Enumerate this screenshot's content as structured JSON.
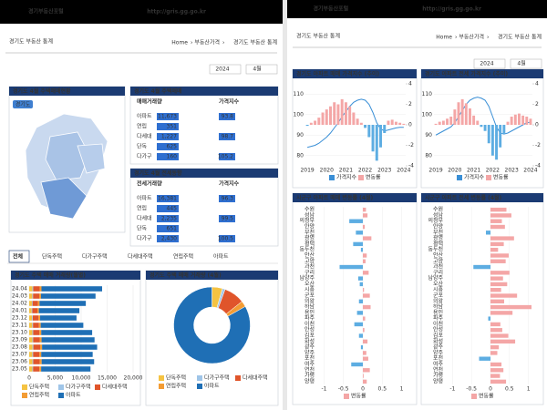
{
  "left": {
    "header": {
      "brand": "경기부동산포털",
      "url": "http://gris.gg.go.kr"
    },
    "title": "경기도 부동산 통계",
    "breadcrumb": [
      "Home",
      "부동산가격",
      "경기도 부동산 통계"
    ],
    "year": "2024",
    "month": "4월",
    "map": {
      "title": "경기도 4월 주택매매현황",
      "tag": "경기도"
    },
    "trade": {
      "title": "경기도 4월 주택매매",
      "col1": "매매거래량",
      "col2": "가격지수",
      "rows": [
        {
          "type": "아파트",
          "count": "11,673",
          "index": "93.8"
        },
        {
          "type": "연립",
          "count": "351"
        },
        {
          "type": "다세대",
          "count": "1,227",
          "index": "98.7"
        },
        {
          "type": "단독",
          "count": "625"
        },
        {
          "type": "다가구",
          "count": "160",
          "index": "105.2"
        }
      ]
    },
    "lease": {
      "title": "경기도 4월 전세동향",
      "col1": "전세거래량",
      "col2": "가격지수",
      "rows": [
        {
          "type": "아파트",
          "count": "16,381",
          "index": "96.3"
        },
        {
          "type": "연립",
          "count": "445"
        },
        {
          "type": "다세대",
          "count": "2,235",
          "index": "99.5"
        },
        {
          "type": "단독",
          "count": "651"
        },
        {
          "type": "다가구",
          "count": "2,430",
          "index": "100.5"
        }
      ]
    },
    "tabs": [
      "전체",
      "단독주택",
      "다가구주택",
      "다세대주택",
      "연립주택",
      "아파트"
    ],
    "monthly_chart": {
      "type": "bar",
      "title": "경기도 주택 매매 거래량(월별)",
      "categories": [
        "24.04",
        "24.03",
        "24.02",
        "24.01",
        "23.12",
        "23.11",
        "23.10",
        "23.09",
        "23.08",
        "23.07",
        "23.06",
        "23.05"
      ],
      "series": [
        {
          "name": "단독주택",
          "color": "#f5c342",
          "values": [
            625,
            600,
            520,
            480,
            560,
            590,
            610,
            620,
            640,
            600,
            630,
            610
          ]
        },
        {
          "name": "다가구주택",
          "color": "#9fc5e8",
          "values": [
            160,
            150,
            130,
            120,
            140,
            150,
            160,
            150,
            170,
            160,
            150,
            140
          ]
        },
        {
          "name": "다세대주택",
          "color": "#e0552b",
          "values": [
            1227,
            1180,
            1050,
            980,
            1100,
            1150,
            1200,
            1250,
            1300,
            1220,
            1260,
            1200
          ]
        },
        {
          "name": "연립주택",
          "color": "#f39c34",
          "values": [
            351,
            340,
            300,
            280,
            310,
            330,
            350,
            360,
            370,
            340,
            360,
            350
          ]
        },
        {
          "name": "아파트",
          "color": "#1f6fb5",
          "values": [
            11673,
            10500,
            8900,
            7800,
            7000,
            8200,
            9800,
            10200,
            10600,
            9900,
            10100,
            9500
          ]
        }
      ],
      "xlim": [
        0,
        20000
      ],
      "xticks": [
        0,
        {
          "value": 5000,
          "label": "5,000"
        },
        {
          "value": 10000,
          "label": "10,000"
        },
        {
          "value": 15000,
          "label": "15,000"
        },
        {
          "value": 20000,
          "label": "20,000"
        }
      ]
    },
    "donut_chart": {
      "type": "pie",
      "title": "경기도 주택 매매 거래량 (4월)",
      "categories": [
        "단독주택",
        "다가구주택",
        "다세대주택",
        "연립주택",
        "아파트"
      ],
      "values": [
        625,
        160,
        1227,
        351,
        11673
      ],
      "colors": [
        "#f5c342",
        "#9fc5e8",
        "#e0552b",
        "#f39c34",
        "#1f6fb5"
      ]
    }
  },
  "right": {
    "header": {
      "brand": "경기부동산포털",
      "url": "http://gris.gg.go.kr"
    },
    "title": "경기도 부동산 통계",
    "breadcrumb": [
      "Home",
      "부동산가격",
      "경기도 부동산 통계"
    ],
    "year": "2024",
    "month": "4월",
    "sale_index_chart": {
      "type": "line",
      "title": "경기도 아파트 매매 가격지수 (추이)",
      "x": [
        "2019",
        null,
        null,
        null,
        null,
        "2020",
        null,
        null,
        null,
        null,
        "2021",
        null,
        null,
        null,
        null,
        "2022",
        null,
        null,
        null,
        null,
        "2023",
        null,
        null,
        null,
        null,
        "2024"
      ],
      "series": [
        {
          "name": "가격지수",
          "color": "#3a8fd6",
          "values": [
            84,
            84.5,
            85,
            86,
            87.5,
            89,
            91,
            93.5,
            96,
            99,
            101.5,
            104,
            106,
            107,
            107.5,
            107,
            105,
            101,
            96,
            93,
            92,
            92.5,
            93,
            93.5,
            93.8,
            93.8
          ]
        },
        {
          "name": "변동률",
          "type": "bar",
          "axis": "y2",
          "color": "#f4a6a6",
          "neg_color": "#5dade2",
          "values": [
            -0.1,
            0.2,
            0.4,
            0.7,
            1.2,
            1.5,
            1.8,
            2.2,
            2,
            2.5,
            2.2,
            1.8,
            1.2,
            0.6,
            0.2,
            -0.3,
            -1.2,
            -2.6,
            -3.5,
            -2.2,
            -0.8,
            0.4,
            0.5,
            0.3,
            0.2,
            0.1
          ]
        }
      ],
      "ylim": [
        75,
        115
      ],
      "yticks": [
        80,
        90,
        100,
        110
      ],
      "y2lim": [
        -4,
        4
      ],
      "y2ticks": [
        -4,
        -2,
        0,
        2,
        4
      ]
    },
    "lease_index_chart": {
      "type": "line",
      "title": "경기도 아파트 전세 가격지수 (추이)",
      "x": [
        "2019",
        null,
        null,
        null,
        null,
        "2020",
        null,
        null,
        null,
        null,
        "2021",
        null,
        null,
        null,
        null,
        "2022",
        null,
        null,
        null,
        null,
        "2023",
        null,
        null,
        null,
        null,
        "2024"
      ],
      "series": [
        {
          "name": "가격지수",
          "color": "#3a8fd6",
          "values": [
            90,
            91,
            92,
            93,
            94,
            96,
            99,
            102,
            105,
            107,
            108,
            108.5,
            108,
            107,
            104,
            99,
            94,
            91,
            90.5,
            91,
            92,
            93,
            94,
            95,
            96,
            96.3
          ]
        },
        {
          "name": "변동률",
          "type": "bar",
          "axis": "y2",
          "color": "#f4a6a6",
          "neg_color": "#5dade2",
          "values": [
            0.1,
            0.3,
            0.4,
            0.6,
            0.8,
            1.5,
            2.2,
            2.5,
            2.1,
            1.6,
            0.9,
            0.4,
            -0.2,
            -0.6,
            -1.8,
            -3,
            -3.4,
            -2.2,
            -0.9,
            0.3,
            0.8,
            1,
            1.1,
            0.9,
            0.8,
            0.6
          ]
        }
      ],
      "ylim": [
        75,
        115
      ],
      "yticks": [
        80,
        90,
        100,
        110
      ],
      "y2lim": [
        -4,
        4
      ],
      "y2ticks": [
        -4,
        -2,
        0,
        2,
        4
      ]
    },
    "sale_region_chart": {
      "type": "bar",
      "title": "시군구 아파트 매매 변동률 (4월)",
      "categories": [
        "수원",
        "성남",
        "의정부",
        "안양",
        "부천",
        "광명",
        "평택",
        "동두천",
        "안산",
        "고양",
        "과천",
        "구리",
        "남양주",
        "오산",
        "시흥",
        "군포",
        "의왕",
        "하남",
        "용인",
        "파주",
        "이천",
        "안성",
        "김포",
        "화성",
        "광주",
        "양주",
        "포천",
        "여주",
        "연천",
        "가평",
        "양평"
      ],
      "series": [
        {
          "name": "변동률",
          "color": "#f4a6a6",
          "neg_color": "#5dade2",
          "values": [
            0.08,
            0.12,
            -0.35,
            0.05,
            -0.18,
            0.22,
            -0.25,
            -0.05,
            0.1,
            0.07,
            -0.6,
            0.15,
            -0.12,
            -0.08,
            0.03,
            0.18,
            -0.1,
            0.2,
            -0.15,
            0.06,
            -0.22,
            0.04,
            -0.1,
            0.12,
            -0.05,
            0.09,
            0.14,
            -0.3,
            0.18,
            0.02,
            0.1
          ]
        }
      ],
      "xlim": [
        -1.2,
        1.2
      ],
      "xticks": [
        -1,
        -0.5,
        0,
        0.5,
        1
      ]
    },
    "lease_region_chart": {
      "type": "bar",
      "title": "시군구 아파트 전세 변동률 (4월)",
      "categories": [
        "수원",
        "성남",
        "의정부",
        "안양",
        "부천",
        "광명",
        "평택",
        "동두천",
        "안산",
        "고양",
        "과천",
        "구리",
        "남양주",
        "오산",
        "시흥",
        "군포",
        "의왕",
        "하남",
        "용인",
        "파주",
        "이천",
        "안성",
        "김포",
        "화성",
        "광주",
        "양주",
        "포천",
        "여주",
        "연천",
        "가평",
        "양평"
      ],
      "series": [
        {
          "name": "변동률",
          "color": "#f4a6a6",
          "neg_color": "#5dade2",
          "values": [
            0.42,
            0.55,
            0.3,
            0.38,
            -0.12,
            0.62,
            0.35,
            0.2,
            0.48,
            0.4,
            -0.45,
            0.5,
            0.33,
            0.44,
            0.28,
            0.7,
            0.36,
            1.08,
            0.58,
            -0.06,
            0.26,
            0.31,
            0.47,
            0.65,
            0.22,
            0.18,
            -0.3,
            0.29,
            0.34,
            0.25,
            0.41
          ]
        }
      ],
      "xlim": [
        -1.2,
        1.2
      ],
      "xticks": [
        -1,
        -0.5,
        0,
        0.5,
        1
      ]
    }
  }
}
